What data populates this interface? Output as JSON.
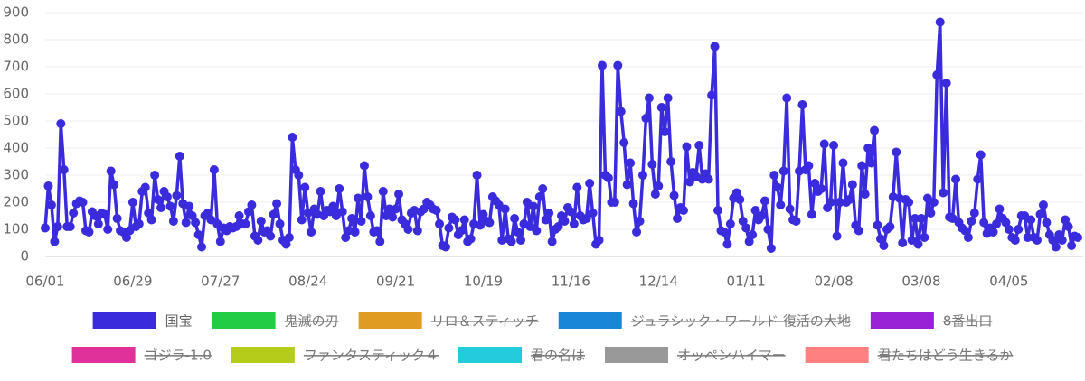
{
  "chart_data": {
    "type": "line",
    "categories": [
      "06/01",
      null,
      null,
      null,
      null,
      null,
      null,
      null,
      null,
      null,
      null,
      null,
      null,
      null,
      null,
      null,
      null,
      null,
      null,
      null,
      null,
      null,
      null,
      null,
      null,
      null,
      null,
      null,
      "06/29",
      null,
      null,
      null,
      null,
      null,
      null,
      null,
      null,
      null,
      null,
      null,
      null,
      null,
      null,
      null,
      null,
      null,
      null,
      null,
      null,
      null,
      null,
      null,
      null,
      null,
      null,
      null,
      "07/27",
      null,
      null,
      null,
      null,
      null,
      null,
      null,
      null,
      null,
      null,
      null,
      null,
      null,
      null,
      null,
      null,
      null,
      null,
      null,
      null,
      null,
      null,
      null,
      null,
      null,
      null,
      null,
      "08/24",
      null,
      null,
      null,
      null,
      null,
      null,
      null,
      null,
      null,
      null,
      null,
      null,
      null,
      null,
      null,
      null,
      null,
      null,
      null,
      null,
      null,
      null,
      null,
      null,
      null,
      null,
      null,
      "09/21",
      null,
      null,
      null,
      null,
      null,
      null,
      null,
      null,
      null,
      null,
      null,
      null,
      null,
      null,
      null,
      null,
      null,
      null,
      null,
      null,
      null,
      null,
      null,
      null,
      null,
      null,
      null,
      "10/19",
      null,
      null,
      null,
      null,
      null,
      null,
      null,
      null,
      null,
      null,
      null,
      null,
      null,
      null,
      null,
      null,
      null,
      null,
      null,
      null,
      null,
      null,
      null,
      null,
      null,
      null,
      null,
      "11/16",
      null,
      null,
      null,
      null,
      null,
      null,
      null,
      null,
      null,
      null,
      null,
      null,
      null,
      null,
      null,
      null,
      null,
      null,
      null,
      null,
      null,
      null,
      null,
      null,
      null,
      null,
      null,
      "12/14",
      null,
      null,
      null,
      null,
      null,
      null,
      null,
      null,
      null,
      null,
      null,
      null,
      null,
      null,
      null,
      null,
      null,
      null,
      null,
      null,
      null,
      null,
      null,
      null,
      null,
      null,
      null,
      "01/11",
      null,
      null,
      null,
      null,
      null,
      null,
      null,
      null,
      null,
      null,
      null,
      null,
      null,
      null,
      null,
      null,
      null,
      null,
      null,
      null,
      null,
      null,
      null,
      null,
      null,
      null,
      null,
      "02/08",
      null,
      null,
      null,
      null,
      null,
      null,
      null,
      null,
      null,
      null,
      null,
      null,
      null,
      null,
      null,
      null,
      null,
      null,
      null,
      null,
      null,
      null,
      null,
      null,
      null,
      null,
      null,
      "03/08",
      null,
      null,
      null,
      null,
      null,
      null,
      null,
      null,
      null,
      null,
      null,
      null,
      null,
      null,
      null,
      null,
      null,
      null,
      null,
      null,
      null,
      null,
      null,
      null,
      null,
      null,
      null,
      "04/05",
      null,
      null,
      null,
      null,
      null,
      null,
      null,
      null,
      null,
      null,
      null,
      null,
      null,
      null,
      null,
      null,
      null,
      null,
      null,
      null,
      null,
      null
    ],
    "series": [
      {
        "name": "国宝",
        "color": "#3a2bdc",
        "values": [
          105,
          260,
          190,
          55,
          110,
          490,
          320,
          110,
          110,
          160,
          195,
          205,
          200,
          95,
          90,
          165,
          150,
          120,
          160,
          155,
          100,
          315,
          265,
          140,
          95,
          90,
          70,
          95,
          200,
          110,
          120,
          240,
          255,
          160,
          135,
          300,
          210,
          180,
          240,
          220,
          185,
          130,
          225,
          370,
          195,
          125,
          185,
          150,
          125,
          80,
          35,
          150,
          160,
          135,
          320,
          120,
          55,
          105,
          95,
          110,
          105,
          110,
          150,
          120,
          120,
          165,
          190,
          75,
          60,
          130,
          90,
          95,
          75,
          155,
          195,
          120,
          60,
          45,
          70,
          440,
          320,
          300,
          135,
          255,
          160,
          90,
          175,
          155,
          240,
          150,
          170,
          165,
          185,
          150,
          250,
          165,
          70,
          95,
          140,
          90,
          215,
          130,
          335,
          220,
          150,
          90,
          95,
          55,
          240,
          150,
          175,
          145,
          175,
          230,
          135,
          120,
          100,
          160,
          170,
          95,
          165,
          175,
          200,
          190,
          175,
          170,
          120,
          40,
          35,
          105,
          145,
          135,
          80,
          95,
          135,
          55,
          65,
          120,
          300,
          115,
          155,
          130,
          125,
          220,
          205,
          190,
          60,
          175,
          65,
          55,
          140,
          90,
          60,
          120,
          200,
          110,
          185,
          95,
          220,
          250,
          135,
          160,
          55,
          100,
          110,
          150,
          130,
          180,
          165,
          120,
          255,
          150,
          135,
          140,
          270,
          160,
          45,
          60,
          705,
          300,
          290,
          200,
          200,
          705,
          535,
          420,
          265,
          345,
          195,
          90,
          130,
          300,
          510,
          585,
          340,
          230,
          260,
          550,
          460,
          585,
          350,
          225,
          140,
          180,
          170,
          405,
          275,
          310,
          295,
          410,
          285,
          305,
          285,
          595,
          775,
          170,
          95,
          90,
          45,
          120,
          215,
          235,
          210,
          130,
          105,
          55,
          80,
          170,
          135,
          150,
          205,
          100,
          30,
          300,
          255,
          190,
          315,
          585,
          175,
          135,
          130,
          315,
          560,
          320,
          335,
          155,
          270,
          240,
          250,
          415,
          180,
          200,
          410,
          75,
          200,
          345,
          200,
          210,
          265,
          115,
          95,
          335,
          230,
          400,
          345,
          465,
          115,
          65,
          40,
          100,
          110,
          220,
          385,
          215,
          50,
          210,
          200,
          60,
          140,
          45,
          140,
          70,
          215,
          160,
          200,
          670,
          865,
          235,
          640,
          145,
          140,
          285,
          125,
          105,
          95,
          70,
          130,
          160,
          285,
          375,
          125,
          85,
          105,
          90,
          120,
          175,
          140,
          125,
          100,
          70,
          60,
          100,
          150,
          150,
          70,
          135,
          70,
          60,
          155,
          190,
          125,
          80,
          60,
          35,
          80,
          60,
          135,
          110,
          40,
          75,
          70
        ]
      },
      {
        "name": "鬼滅の刃",
        "color": "#22cc44",
        "hidden": true
      },
      {
        "name": "リロ＆スティッチ",
        "color": "#e09b22",
        "hidden": true
      },
      {
        "name": "ジュラシック・ワールド 復活の大地",
        "color": "#1a86d6",
        "hidden": true
      },
      {
        "name": "8番出口",
        "color": "#9a22d6",
        "hidden": true
      },
      {
        "name": "ゴジラ-1.0",
        "color": "#e0309a",
        "hidden": true
      },
      {
        "name": "ファンタスティック４",
        "color": "#b5cc1a",
        "hidden": true
      },
      {
        "name": "君の名は",
        "color": "#22ccdd",
        "hidden": true
      },
      {
        "name": "オッペンハイマー",
        "color": "#999999",
        "hidden": true
      },
      {
        "name": "君たちはどう生きるか",
        "color": "#ff8080",
        "hidden": true
      }
    ],
    "ylim": [
      0,
      900
    ],
    "yticks": [
      0,
      100,
      200,
      300,
      400,
      500,
      600,
      700,
      800,
      900
    ],
    "grid": true,
    "legend": "bottom"
  }
}
